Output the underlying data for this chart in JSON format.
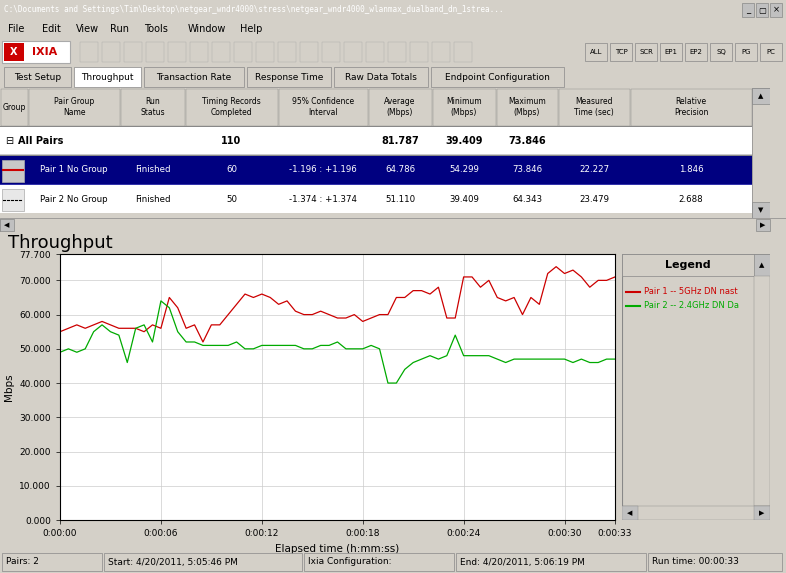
{
  "title_bar": "C:\\Documents and Settings\\Tim\\Desktop\\netgear_wndr4000\\stress\\netgear_wndr4000_wlanmax_dualband_dn_1strea...",
  "chart_title": "Throughput",
  "xlabel": "Elapsed time (h:mm:ss)",
  "ylabel": "Mbps",
  "ylim": [
    0,
    77.7
  ],
  "ytick_labels": [
    "0.000",
    "10.000",
    "20.000",
    "30.000",
    "40.000",
    "50.000",
    "60.000",
    "70.000",
    "77.700"
  ],
  "xtick_labels": [
    "0:00:00",
    "0:00:06",
    "0:00:12",
    "0:00:18",
    "0:00:24",
    "0:00:30",
    "0:00:33"
  ],
  "xtick_positions": [
    0,
    6,
    12,
    18,
    24,
    30,
    33
  ],
  "xmax": 33,
  "legend_title": "Legend",
  "legend_pair1": "Pair 1 -- 5GHz DN nast",
  "legend_pair2": "Pair 2 -- 2.4GHz DN Da",
  "pair1_color": "#cc0000",
  "pair2_color": "#00aa00",
  "status_bar_left": "Pairs: 2",
  "status_bar_mid": "Start: 4/20/2011, 5:05:46 PM",
  "status_bar_mid2": "Ixia Configuration:",
  "status_bar_right": "End: 4/20/2011, 5:06:19 PM",
  "status_bar_far": "Run time: 00:00:33",
  "pair1_x": [
    0,
    0.5,
    1,
    1.5,
    2,
    2.5,
    3,
    3.5,
    4,
    4.5,
    5,
    5.5,
    6,
    6.5,
    7,
    7.5,
    8,
    8.5,
    9,
    9.5,
    10,
    10.5,
    11,
    11.5,
    12,
    12.5,
    13,
    13.5,
    14,
    14.5,
    15,
    15.5,
    16,
    16.5,
    17,
    17.5,
    18,
    18.5,
    19,
    19.5,
    20,
    20.5,
    21,
    21.5,
    22,
    22.5,
    23,
    23.5,
    24,
    24.5,
    25,
    25.5,
    26,
    26.5,
    27,
    27.5,
    28,
    28.5,
    29,
    29.5,
    30,
    30.5,
    31,
    31.5,
    32,
    32.5,
    33
  ],
  "pair1_y": [
    55,
    56,
    57,
    56,
    57,
    58,
    57,
    56,
    56,
    56,
    55,
    57,
    56,
    65,
    62,
    56,
    57,
    52,
    57,
    57,
    60,
    63,
    66,
    65,
    66,
    65,
    63,
    64,
    61,
    60,
    60,
    61,
    60,
    59,
    59,
    60,
    58,
    59,
    60,
    60,
    65,
    65,
    67,
    67,
    66,
    68,
    59,
    59,
    71,
    71,
    68,
    70,
    65,
    64,
    65,
    60,
    65,
    63,
    72,
    74,
    72,
    73,
    71,
    68,
    70,
    70,
    71
  ],
  "pair2_x": [
    0,
    0.5,
    1,
    1.5,
    2,
    2.5,
    3,
    3.5,
    4,
    4.5,
    5,
    5.5,
    6,
    6.5,
    7,
    7.5,
    8,
    8.5,
    9,
    9.5,
    10,
    10.5,
    11,
    11.5,
    12,
    12.5,
    13,
    13.5,
    14,
    14.5,
    15,
    15.5,
    16,
    16.5,
    17,
    17.5,
    18,
    18.5,
    19,
    19.5,
    20,
    20.5,
    21,
    21.5,
    22,
    22.5,
    23,
    23.5,
    24,
    24.5,
    25,
    25.5,
    26,
    26.5,
    27,
    27.5,
    28,
    28.5,
    29,
    29.5,
    30,
    30.5,
    31,
    31.5,
    32,
    32.5,
    33
  ],
  "pair2_y": [
    49,
    50,
    49,
    50,
    55,
    57,
    55,
    54,
    46,
    56,
    57,
    52,
    64,
    62,
    55,
    52,
    52,
    51,
    51,
    51,
    51,
    52,
    50,
    50,
    51,
    51,
    51,
    51,
    51,
    50,
    50,
    51,
    51,
    52,
    50,
    50,
    50,
    51,
    50,
    40,
    40,
    44,
    46,
    47,
    48,
    47,
    48,
    54,
    48,
    48,
    48,
    48,
    47,
    46,
    47,
    47,
    47,
    47,
    47,
    47,
    47,
    46,
    47,
    46,
    46,
    47,
    47
  ]
}
